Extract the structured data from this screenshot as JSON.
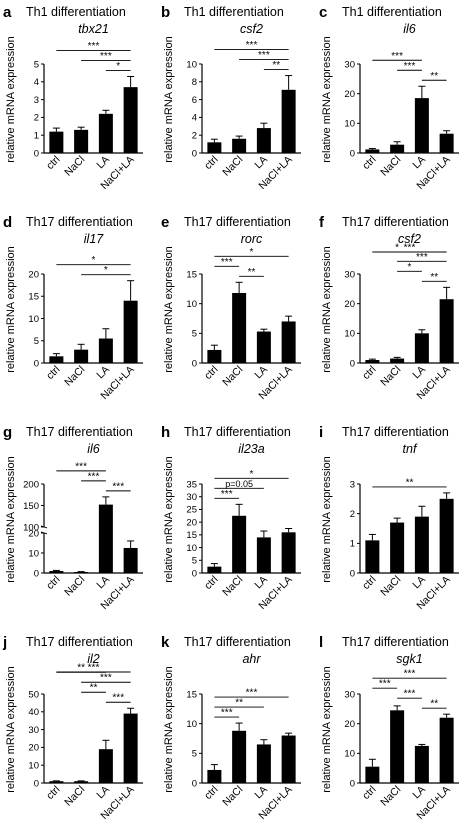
{
  "figure": {
    "categories": [
      "ctrl",
      "NaCl",
      "LA",
      "NaCl+LA"
    ],
    "ylabel": "relative mRNA expression"
  },
  "chart_data": [
    {
      "letter": "a",
      "title": "Th1 differentiation",
      "gene": "tbx21",
      "type": "bar",
      "categories": [
        "ctrl",
        "NaCl",
        "LA",
        "NaCl+LA"
      ],
      "values": [
        1.2,
        1.3,
        2.2,
        3.7
      ],
      "errors": [
        0.2,
        0.15,
        0.2,
        0.6
      ],
      "ylim": [
        0,
        5
      ],
      "yticks": [
        0,
        1,
        2,
        3,
        4,
        5
      ],
      "ylabel": "relative mRNA expression",
      "significance": [
        {
          "from": 0,
          "to": 3,
          "label": "***"
        },
        {
          "from": 1,
          "to": 3,
          "label": "***"
        },
        {
          "from": 2,
          "to": 3,
          "label": "*"
        }
      ]
    },
    {
      "letter": "b",
      "title": "Th1 differentiation",
      "gene": "csf2",
      "type": "bar",
      "categories": [
        "ctrl",
        "NaCl",
        "LA",
        "NaCl+LA"
      ],
      "values": [
        1.2,
        1.6,
        2.8,
        7.1
      ],
      "errors": [
        0.35,
        0.3,
        0.55,
        1.6
      ],
      "ylim": [
        0,
        10
      ],
      "yticks": [
        0,
        2,
        4,
        6,
        8,
        10
      ],
      "ylabel": "relative mRNA expression",
      "significance": [
        {
          "from": 0,
          "to": 3,
          "label": "***"
        },
        {
          "from": 1,
          "to": 3,
          "label": "***"
        },
        {
          "from": 2,
          "to": 3,
          "label": "**"
        }
      ]
    },
    {
      "letter": "c",
      "title": "Th1 differentiation",
      "gene": "il6",
      "type": "bar",
      "categories": [
        "ctrl",
        "NaCl",
        "LA",
        "NaCl+LA"
      ],
      "values": [
        1.2,
        2.8,
        18.5,
        6.5
      ],
      "errors": [
        0.3,
        1.0,
        4.0,
        1.0
      ],
      "ylim": [
        0,
        30
      ],
      "yticks": [
        0,
        10,
        20,
        30
      ],
      "ylabel": "relative mRNA expression",
      "significance": [
        {
          "from": 0,
          "to": 2,
          "label": "***"
        },
        {
          "from": 1,
          "to": 2,
          "label": "***"
        },
        {
          "from": 2,
          "to": 3,
          "label": "**"
        }
      ]
    },
    {
      "letter": "d",
      "title": "Th17 differentiation",
      "gene": "il17",
      "type": "bar",
      "categories": [
        "ctrl",
        "NaCl",
        "LA",
        "NaCl+LA"
      ],
      "values": [
        1.5,
        3.0,
        5.5,
        14.0
      ],
      "errors": [
        0.6,
        1.2,
        2.2,
        4.5
      ],
      "ylim": [
        0,
        20
      ],
      "yticks": [
        0,
        5,
        10,
        15,
        20
      ],
      "ylabel": "relative mRNA expression",
      "significance": [
        {
          "from": 0,
          "to": 3,
          "label": "*"
        },
        {
          "from": 1,
          "to": 3,
          "label": "*"
        }
      ]
    },
    {
      "letter": "e",
      "title": "Th17 differentiation",
      "gene": "rorc",
      "type": "bar",
      "categories": [
        "ctrl",
        "NaCl",
        "LA",
        "NaCl+LA"
      ],
      "values": [
        2.2,
        11.8,
        5.3,
        7.0
      ],
      "errors": [
        0.8,
        1.8,
        0.4,
        0.9
      ],
      "ylim": [
        0,
        15
      ],
      "yticks": [
        0,
        5,
        10,
        15
      ],
      "ylabel": "relative mRNA expression",
      "significance": [
        {
          "from": 0,
          "to": 1,
          "label": "***"
        },
        {
          "from": 1,
          "to": 2,
          "label": "**"
        },
        {
          "from": 0,
          "to": 3,
          "label": "*"
        }
      ]
    },
    {
      "letter": "f",
      "title": "Th17 differentiation",
      "gene": "csf2",
      "type": "bar",
      "categories": [
        "ctrl",
        "NaCl",
        "LA",
        "NaCl+LA"
      ],
      "values": [
        1.0,
        1.5,
        10.0,
        21.5
      ],
      "errors": [
        0.3,
        0.4,
        1.2,
        4.0
      ],
      "ylim": [
        0,
        30
      ],
      "yticks": [
        0,
        10,
        20,
        30
      ],
      "ylabel": "relative mRNA expression",
      "significance": [
        {
          "from": 0,
          "to": 2,
          "label": "*"
        },
        {
          "from": 1,
          "to": 2,
          "label": "*"
        },
        {
          "from": 0,
          "to": 3,
          "label": "***"
        },
        {
          "from": 1,
          "to": 3,
          "label": "***"
        },
        {
          "from": 2,
          "to": 3,
          "label": "**"
        }
      ]
    },
    {
      "letter": "g",
      "title": "Th17 differentiation",
      "gene": "il6",
      "type": "bar",
      "categories": [
        "ctrl",
        "NaCl",
        "LA",
        "NaCl+LA"
      ],
      "values": [
        1.0,
        0.5,
        152,
        12.5
      ],
      "errors": [
        0.3,
        0.2,
        18,
        3.5
      ],
      "yticks": [
        0,
        10,
        20,
        100,
        150,
        200
      ],
      "ylabel": "relative mRNA expression",
      "axis_break": {
        "lower": [
          0,
          20
        ],
        "upper": [
          100,
          200
        ]
      },
      "significance": [
        {
          "from": 0,
          "to": 2,
          "label": "***"
        },
        {
          "from": 1,
          "to": 2,
          "label": "***"
        },
        {
          "from": 2,
          "to": 3,
          "label": "***"
        }
      ]
    },
    {
      "letter": "h",
      "title": "Th17 differentiation",
      "gene": "il23a",
      "type": "bar",
      "categories": [
        "ctrl",
        "NaCl",
        "LA",
        "NaCl+LA"
      ],
      "values": [
        2.5,
        22.5,
        14.0,
        16.0
      ],
      "errors": [
        1.2,
        4.5,
        2.5,
        1.5
      ],
      "ylim": [
        0,
        35
      ],
      "yticks": [
        0,
        5,
        10,
        15,
        20,
        25,
        30,
        35
      ],
      "ylabel": "relative mRNA expression",
      "significance": [
        {
          "from": 0,
          "to": 1,
          "label": "***"
        },
        {
          "from": 0,
          "to": 2,
          "label": "p=0.05"
        },
        {
          "from": 0,
          "to": 3,
          "label": "*"
        }
      ]
    },
    {
      "letter": "i",
      "title": "Th17 differentiation",
      "gene": "tnf",
      "type": "bar",
      "categories": [
        "ctrl",
        "NaCl",
        "LA",
        "NaCl+LA"
      ],
      "values": [
        1.1,
        1.7,
        1.9,
        2.5
      ],
      "errors": [
        0.2,
        0.15,
        0.35,
        0.2
      ],
      "ylim": [
        0,
        3
      ],
      "yticks": [
        0,
        1,
        2,
        3
      ],
      "ylabel": "relative mRNA expression",
      "significance": [
        {
          "from": 0,
          "to": 3,
          "label": "**"
        }
      ]
    },
    {
      "letter": "j",
      "title": "Th17 differentiation",
      "gene": "il2",
      "type": "bar",
      "categories": [
        "ctrl",
        "NaCl",
        "LA",
        "NaCl+LA"
      ],
      "values": [
        1.0,
        1.0,
        19.0,
        39.0
      ],
      "errors": [
        0.2,
        0.2,
        5.0,
        3.0
      ],
      "ylim": [
        0,
        50
      ],
      "yticks": [
        0,
        10,
        20,
        30,
        40,
        50
      ],
      "ylabel": "relative mRNA expression",
      "significance": [
        {
          "from": 0,
          "to": 2,
          "label": "**"
        },
        {
          "from": 1,
          "to": 2,
          "label": "**"
        },
        {
          "from": 0,
          "to": 3,
          "label": "***"
        },
        {
          "from": 1,
          "to": 3,
          "label": "***"
        },
        {
          "from": 2,
          "to": 3,
          "label": "***"
        }
      ]
    },
    {
      "letter": "k",
      "title": "Th17 differentiation",
      "gene": "ahr",
      "type": "bar",
      "categories": [
        "ctrl",
        "NaCl",
        "LA",
        "NaCl+LA"
      ],
      "values": [
        2.2,
        8.8,
        6.5,
        8.0
      ],
      "errors": [
        0.9,
        1.3,
        0.8,
        0.4
      ],
      "ylim": [
        0,
        15
      ],
      "yticks": [
        0,
        5,
        10,
        15
      ],
      "ylabel": "relative mRNA expression",
      "significance": [
        {
          "from": 0,
          "to": 1,
          "label": "***"
        },
        {
          "from": 0,
          "to": 2,
          "label": "**"
        },
        {
          "from": 0,
          "to": 3,
          "label": "***"
        }
      ]
    },
    {
      "letter": "l",
      "title": "Th17 differentiation",
      "gene": "sgk1",
      "type": "bar",
      "categories": [
        "ctrl",
        "NaCl",
        "LA",
        "NaCl+LA"
      ],
      "values": [
        5.5,
        24.5,
        12.5,
        22.0
      ],
      "errors": [
        2.5,
        1.5,
        0.5,
        1.2
      ],
      "ylim": [
        0,
        30
      ],
      "yticks": [
        0,
        10,
        20,
        30
      ],
      "ylabel": "relative mRNA expression",
      "significance": [
        {
          "from": 0,
          "to": 1,
          "label": "***"
        },
        {
          "from": 1,
          "to": 2,
          "label": "***"
        },
        {
          "from": 0,
          "to": 3,
          "label": "***"
        },
        {
          "from": 2,
          "to": 3,
          "label": "**"
        }
      ]
    }
  ]
}
